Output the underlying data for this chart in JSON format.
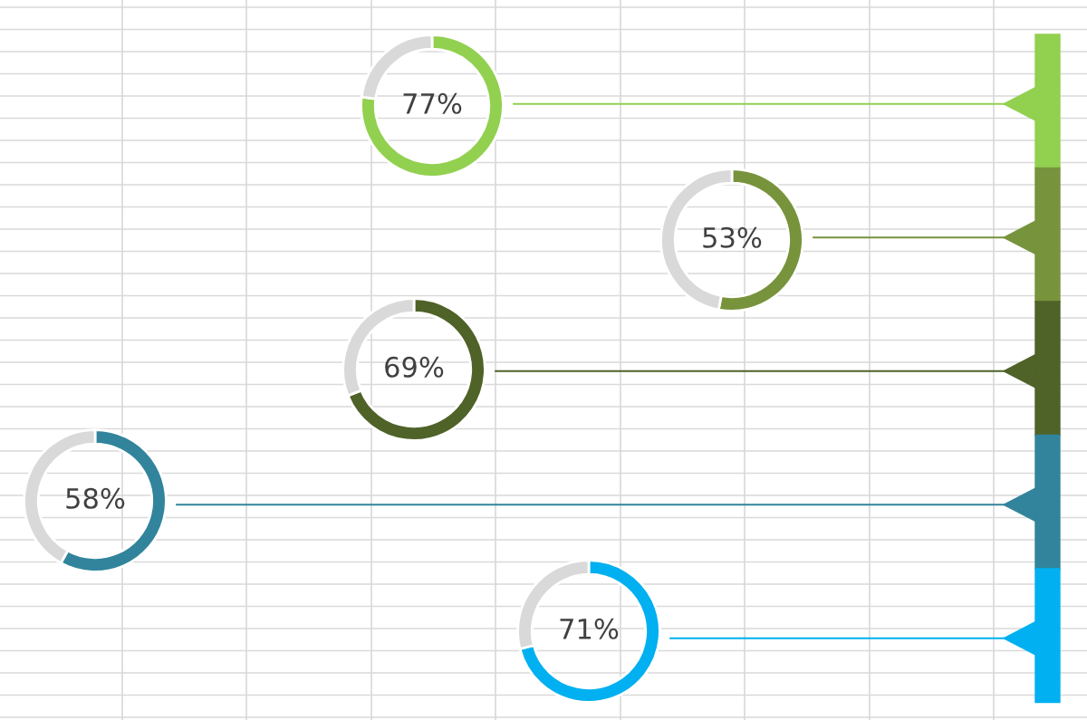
{
  "chart_data": [
    {
      "type": "donut",
      "categories": [
        null,
        null
      ],
      "values": [
        77,
        23
      ],
      "colors": [
        "#92d050",
        "#d9d9d9"
      ],
      "value_labels": [
        "77%",
        null
      ]
    },
    {
      "type": "donut",
      "categories": [
        null,
        null
      ],
      "values": [
        53,
        47
      ],
      "colors": [
        "#77933c",
        "#d9d9d9"
      ],
      "value_labels": [
        "53%",
        null
      ]
    },
    {
      "type": "donut",
      "categories": [
        null,
        null
      ],
      "values": [
        69,
        31
      ],
      "colors": [
        "#4f6228",
        "#d9d9d9"
      ],
      "value_labels": [
        "69%",
        null
      ]
    },
    {
      "type": "donut",
      "categories": [
        null,
        null
      ],
      "values": [
        58,
        42
      ],
      "colors": [
        "#31849b",
        "#d9d9d9"
      ],
      "value_labels": [
        "58%",
        null
      ]
    },
    {
      "type": "donut",
      "categories": [
        null,
        null
      ],
      "values": [
        71,
        29
      ],
      "colors": [
        "#00b0f0",
        "#d9d9d9"
      ],
      "value_labels": [
        "71%",
        null
      ]
    }
  ]
}
